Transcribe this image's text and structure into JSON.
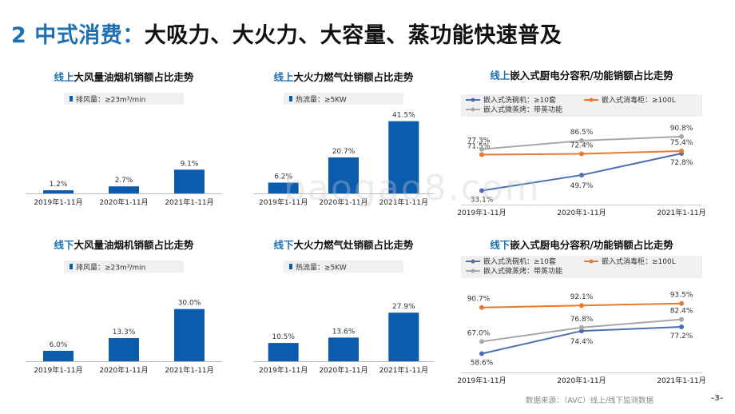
{
  "header": {
    "number": "2",
    "keyword": "中式消费：",
    "headline": "大吸力、大火力、大容量、蒸功能快速普及"
  },
  "watermark": "baogao8.com",
  "footer": {
    "source": "数据来源：（AVC）线上/线下监测数据",
    "page": "-3-"
  },
  "colors": {
    "bar": "#0b5cad",
    "series_dishwasher": "#4a6fb3",
    "series_disinfection": "#e8792d",
    "series_steam": "#a8a8a8",
    "accent": "#1f6fb5"
  },
  "chart_data": [
    {
      "id": "online-hood",
      "type": "bar",
      "title_prefix": "线上",
      "title": "大风量油烟机销额占比走势",
      "legend": "排风量：≥23m³/min",
      "categories": [
        "2019年1-11月",
        "2020年1-11月",
        "2021年1-11月"
      ],
      "values": [
        1.2,
        2.7,
        9.1
      ],
      "labels": [
        "1.2%",
        "2.7%",
        "9.1%"
      ],
      "ylim": [
        0,
        30
      ]
    },
    {
      "id": "online-stove",
      "type": "bar",
      "title_prefix": "线上",
      "title": "大火力燃气灶销额占比走势",
      "legend": "热流量：≥5KW",
      "categories": [
        "2019年1-11月",
        "2020年1-11月",
        "2021年1-11月"
      ],
      "values": [
        6.2,
        20.7,
        41.5
      ],
      "labels": [
        "6.2%",
        "20.7%",
        "41.5%"
      ],
      "ylim": [
        0,
        45
      ]
    },
    {
      "id": "online-builtin",
      "type": "line",
      "title_prefix": "线上",
      "title": "嵌入式厨电分容积/功能销额占比走势",
      "categories": [
        "2019年1-11月",
        "2020年1-11月",
        "2021年1-11月"
      ],
      "ylim": [
        25,
        95
      ],
      "series": [
        {
          "name": "嵌入式洗碗机：≥10套",
          "values": [
            33.1,
            49.7,
            72.8
          ],
          "labels": [
            "33.1%",
            "49.7%",
            "72.8%"
          ]
        },
        {
          "name": "嵌入式消毒柜：≥100L",
          "values": [
            71.5,
            72.4,
            75.4
          ],
          "labels": [
            "71.5%",
            "72.4%",
            "75.4%"
          ]
        },
        {
          "name": "嵌入式微蒸烤：带蒸功能",
          "values": [
            77.3,
            86.5,
            90.8
          ],
          "labels": [
            "77.3%",
            "86.5%",
            "90.8%"
          ]
        }
      ]
    },
    {
      "id": "offline-hood",
      "type": "bar",
      "title_prefix": "线下",
      "title": "大风量油烟机销额占比走势",
      "legend": "排风量：≥23m³/min",
      "categories": [
        "2019年1-11月",
        "2020年1-11月",
        "2021年1-11月"
      ],
      "values": [
        6.0,
        13.3,
        30.0
      ],
      "labels": [
        "6.0%",
        "13.3%",
        "30.0%"
      ],
      "ylim": [
        0,
        45
      ]
    },
    {
      "id": "offline-stove",
      "type": "bar",
      "title_prefix": "线下",
      "title": "大火力燃气灶销额占比走势",
      "legend": "热流量：≥5KW",
      "categories": [
        "2019年1-11月",
        "2020年1-11月",
        "2021年1-11月"
      ],
      "values": [
        10.5,
        13.6,
        27.9
      ],
      "labels": [
        "10.5%",
        "13.6%",
        "27.9%"
      ],
      "ylim": [
        0,
        45
      ]
    },
    {
      "id": "offline-builtin",
      "type": "line",
      "title_prefix": "线下",
      "title": "嵌入式厨电分容积/功能销额占比走势",
      "categories": [
        "2019年1-11月",
        "2020年1-11月",
        "2021年1-11月"
      ],
      "ylim": [
        50,
        100
      ],
      "series": [
        {
          "name": "嵌入式洗碗机：≥10套",
          "values": [
            58.6,
            74.4,
            77.2
          ],
          "labels": [
            "58.6%",
            "74.4%",
            "77.2%"
          ]
        },
        {
          "name": "嵌入式消毒柜：≥100L",
          "values": [
            90.7,
            92.1,
            93.5
          ],
          "labels": [
            "90.7%",
            "92.1%",
            "93.5%"
          ]
        },
        {
          "name": "嵌入式微蒸烤：带蒸功能",
          "values": [
            67.0,
            76.8,
            82.4
          ],
          "labels": [
            "67.0%",
            "76.8%",
            "82.4%"
          ]
        }
      ]
    }
  ]
}
